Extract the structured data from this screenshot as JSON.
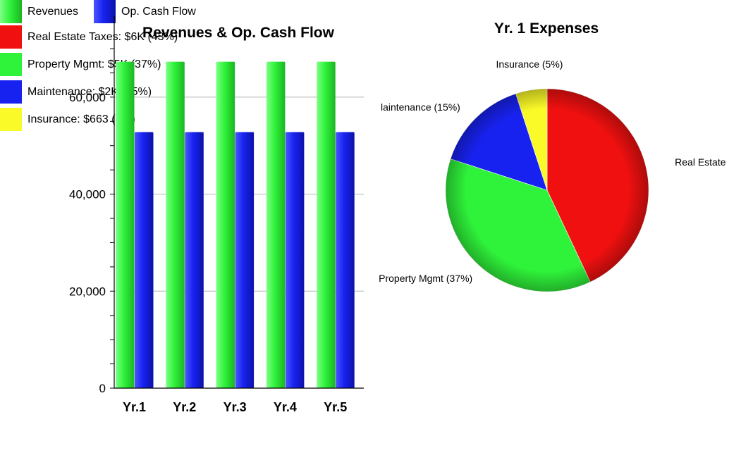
{
  "charts": {
    "bar": {
      "type": "bar",
      "title": "Revenues & Op. Cash Flow",
      "categories": [
        "Yr.1",
        "Yr.2",
        "Yr.3",
        "Yr.4",
        "Yr.5"
      ],
      "series": [
        {
          "name": "Revenues",
          "values": [
            67300,
            67300,
            67300,
            67300,
            67300
          ],
          "color": "#2ff23a"
        },
        {
          "name": "Op. Cash Flow",
          "values": [
            52800,
            52800,
            52800,
            52800,
            52800
          ],
          "color": "#1822f0"
        }
      ],
      "ylim": [
        0,
        70000
      ],
      "yticks": [
        0,
        20000,
        40000,
        60000
      ],
      "ytick_labels": [
        "0",
        "20,000",
        "40,000",
        "60,000"
      ],
      "grid": true,
      "legend_placement": "bottom"
    },
    "pie": {
      "type": "pie",
      "title": "Yr. 1 Expenses",
      "slices": [
        {
          "label": "Real Estate",
          "legend": "Real Estate Taxes: $6K (43%)",
          "value": 43,
          "color": "#f01010"
        },
        {
          "label": "Property Mgmt (37%)",
          "legend": "Property Mgmt: $5K (37%)",
          "value": 37,
          "color": "#2ff23a"
        },
        {
          "label": "laintenance (15%)",
          "legend": "Maintenance: $2K (15%)",
          "value": 15,
          "color": "#1822f0"
        },
        {
          "label": "Insurance (5%)",
          "legend": "Insurance: $663 (5%)",
          "value": 5,
          "color": "#fafa28"
        }
      ],
      "legend_placement": "bottom"
    }
  },
  "chart_data": [
    {
      "type": "bar",
      "title": "Revenues & Op. Cash Flow",
      "categories": [
        "Yr.1",
        "Yr.2",
        "Yr.3",
        "Yr.4",
        "Yr.5"
      ],
      "series": [
        {
          "name": "Revenues",
          "values": [
            67300,
            67300,
            67300,
            67300,
            67300
          ]
        },
        {
          "name": "Op. Cash Flow",
          "values": [
            52800,
            52800,
            52800,
            52800,
            52800
          ]
        }
      ],
      "ylim": [
        0,
        70000
      ]
    },
    {
      "type": "pie",
      "title": "Yr. 1 Expenses",
      "categories": [
        "Real Estate Taxes",
        "Property Mgmt",
        "Maintenance",
        "Insurance"
      ],
      "values": [
        43,
        37,
        15,
        5
      ]
    }
  ]
}
